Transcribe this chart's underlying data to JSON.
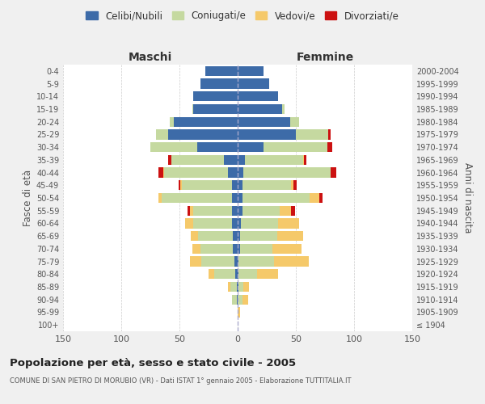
{
  "age_groups": [
    "100+",
    "95-99",
    "90-94",
    "85-89",
    "80-84",
    "75-79",
    "70-74",
    "65-69",
    "60-64",
    "55-59",
    "50-54",
    "45-49",
    "40-44",
    "35-39",
    "30-34",
    "25-29",
    "20-24",
    "15-19",
    "10-14",
    "5-9",
    "0-4"
  ],
  "birth_years": [
    "≤ 1904",
    "1905-1909",
    "1910-1914",
    "1915-1919",
    "1920-1924",
    "1925-1929",
    "1930-1934",
    "1935-1939",
    "1940-1944",
    "1945-1949",
    "1950-1954",
    "1955-1959",
    "1960-1964",
    "1965-1969",
    "1970-1974",
    "1975-1979",
    "1980-1984",
    "1985-1989",
    "1990-1994",
    "1995-1999",
    "2000-2004"
  ],
  "maschi": {
    "celibi": [
      0,
      0,
      1,
      1,
      2,
      3,
      4,
      4,
      5,
      5,
      5,
      5,
      8,
      12,
      35,
      60,
      55,
      38,
      38,
      32,
      28
    ],
    "coniugati": [
      0,
      0,
      4,
      5,
      18,
      28,
      28,
      30,
      33,
      33,
      60,
      43,
      55,
      45,
      40,
      10,
      3,
      1,
      0,
      0,
      0
    ],
    "vedovi": [
      0,
      0,
      0,
      2,
      5,
      10,
      7,
      6,
      7,
      3,
      3,
      1,
      1,
      0,
      0,
      0,
      0,
      0,
      0,
      0,
      0
    ],
    "divorziati": [
      0,
      0,
      0,
      0,
      0,
      0,
      0,
      0,
      0,
      2,
      0,
      2,
      4,
      3,
      0,
      0,
      0,
      0,
      0,
      0,
      0
    ]
  },
  "femmine": {
    "nubili": [
      0,
      0,
      0,
      1,
      1,
      1,
      2,
      2,
      3,
      4,
      4,
      4,
      5,
      6,
      22,
      50,
      45,
      38,
      35,
      27,
      22
    ],
    "coniugate": [
      0,
      0,
      4,
      4,
      16,
      30,
      28,
      32,
      32,
      32,
      58,
      42,
      75,
      50,
      55,
      28,
      8,
      2,
      0,
      0,
      0
    ],
    "vedove": [
      0,
      2,
      5,
      5,
      18,
      30,
      25,
      22,
      18,
      10,
      8,
      2,
      0,
      1,
      0,
      0,
      0,
      0,
      0,
      0,
      0
    ],
    "divorziate": [
      0,
      0,
      0,
      0,
      0,
      0,
      0,
      0,
      0,
      3,
      3,
      3,
      5,
      2,
      4,
      2,
      0,
      0,
      0,
      0,
      0
    ]
  },
  "colors": {
    "celibi": "#3d6ba8",
    "coniugati": "#c5d9a0",
    "vedovi": "#f5c96a",
    "divorziati": "#cc1111"
  },
  "xlim": 150,
  "title": "Popolazione per età, sesso e stato civile - 2005",
  "subtitle": "COMUNE DI SAN PIETRO DI MORUBIO (VR) - Dati ISTAT 1° gennaio 2005 - Elaborazione TUTTITALIA.IT",
  "ylabel_left": "Fasce di età",
  "ylabel_right": "Anni di nascita",
  "legend_labels": [
    "Celibi/Nubili",
    "Coniugati/e",
    "Vedovi/e",
    "Divorziati/e"
  ],
  "maschi_label": "Maschi",
  "femmine_label": "Femmine",
  "bg_color": "#f0f0f0",
  "plot_bg_color": "#ffffff"
}
